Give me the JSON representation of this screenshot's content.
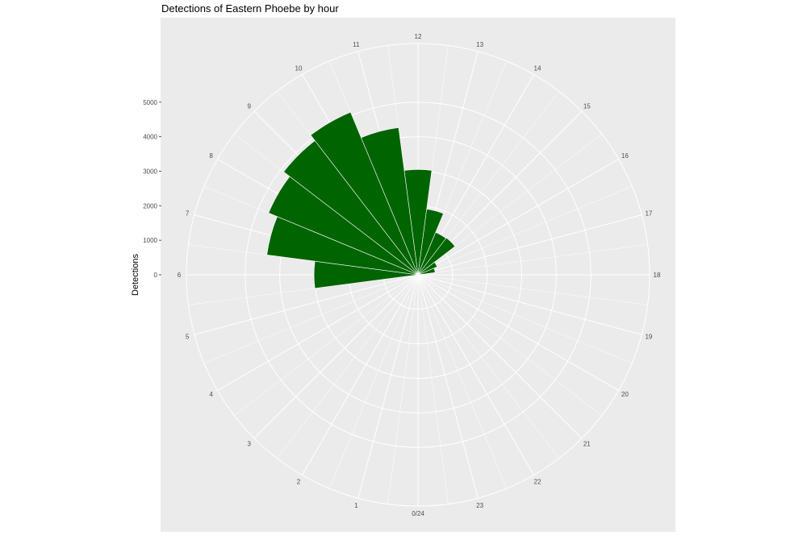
{
  "chart_data": {
    "type": "bar",
    "coord": "polar",
    "title": "Detections of Eastern Phoebe by hour",
    "xlabel": "",
    "ylabel": "Detections",
    "categories": [
      "0/24",
      "1",
      "2",
      "3",
      "4",
      "5",
      "6",
      "7",
      "8",
      "9",
      "10",
      "11",
      "12",
      "13",
      "14",
      "15",
      "16",
      "17",
      "18",
      "19",
      "20",
      "21",
      "22",
      "23"
    ],
    "values": [
      0,
      0,
      0,
      0,
      0,
      0,
      3010,
      4410,
      4680,
      4900,
      5100,
      4300,
      3050,
      1920,
      1330,
      1350,
      600,
      500,
      0,
      0,
      0,
      0,
      0,
      0
    ],
    "y_ticks": [
      "0",
      "1000",
      "2000",
      "3000",
      "4000",
      "5000"
    ],
    "ylim": [
      0,
      6700
    ],
    "bar_color": "#006400",
    "panel_color": "#ebebeb",
    "grid_color": "#ffffff",
    "grid": true,
    "legend": "none"
  }
}
